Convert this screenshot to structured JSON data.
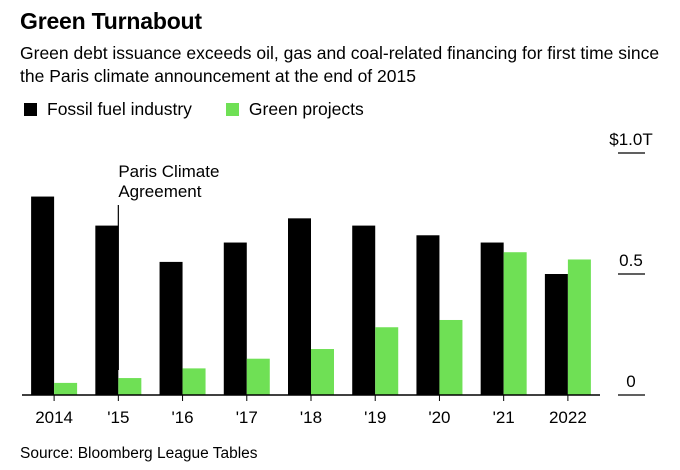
{
  "header": {
    "title": "Green Turnabout",
    "subtitle": "Green debt issuance exceeds oil, gas and coal-related financing for first time since the Paris climate announcement at the end of 2015"
  },
  "legend": [
    {
      "label": "Fossil fuel industry",
      "color": "#000000"
    },
    {
      "label": "Green projects",
      "color": "#6fe055"
    }
  ],
  "annotation": {
    "line1": "Paris Climate",
    "line2": "Agreement",
    "category": "'15"
  },
  "source": "Source: Bloomberg League Tables",
  "chart_data": {
    "type": "bar",
    "title": "Green Turnabout",
    "categories": [
      "2014",
      "'15",
      "'16",
      "'17",
      "'18",
      "'19",
      "'20",
      "'21",
      "2022"
    ],
    "series": [
      {
        "name": "Fossil fuel industry",
        "color": "#000000",
        "values": [
          0.82,
          0.7,
          0.55,
          0.63,
          0.73,
          0.7,
          0.66,
          0.63,
          0.5
        ]
      },
      {
        "name": "Green projects",
        "color": "#6fe055",
        "values": [
          0.05,
          0.07,
          0.11,
          0.15,
          0.19,
          0.28,
          0.31,
          0.59,
          0.56
        ]
      }
    ],
    "ylim": [
      0,
      1.0
    ],
    "yticks": [
      {
        "value": 0,
        "label": "0"
      },
      {
        "value": 0.5,
        "label": "0.5"
      },
      {
        "value": 1.0,
        "label": "$1.0T"
      }
    ],
    "axis_side": "right",
    "grid": false,
    "legend_position": "top-left"
  }
}
